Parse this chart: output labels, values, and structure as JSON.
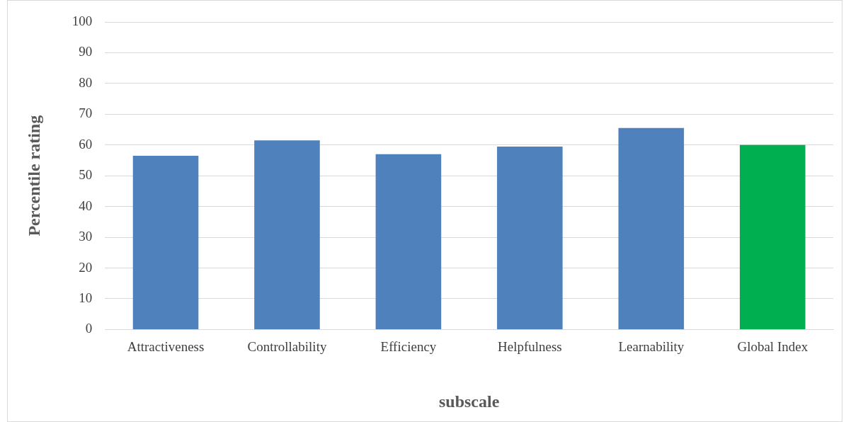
{
  "chart_data": {
    "type": "bar",
    "xlabel": "subscale",
    "ylabel": "Percentile rating",
    "categories": [
      "Attractiveness",
      "Controllability",
      "Efficiency",
      "Helpfulness",
      "Learnability",
      "Global Index"
    ],
    "values": [
      56.5,
      61.5,
      57,
      59.5,
      65.5,
      60
    ],
    "colors": [
      "#4f81bd",
      "#4f81bd",
      "#4f81bd",
      "#4f81bd",
      "#4f81bd",
      "#00b050"
    ],
    "ylim": [
      0,
      100
    ],
    "yticks": [
      0,
      10,
      20,
      30,
      40,
      50,
      60,
      70,
      80,
      90,
      100
    ],
    "grid": "y",
    "legend": false
  }
}
